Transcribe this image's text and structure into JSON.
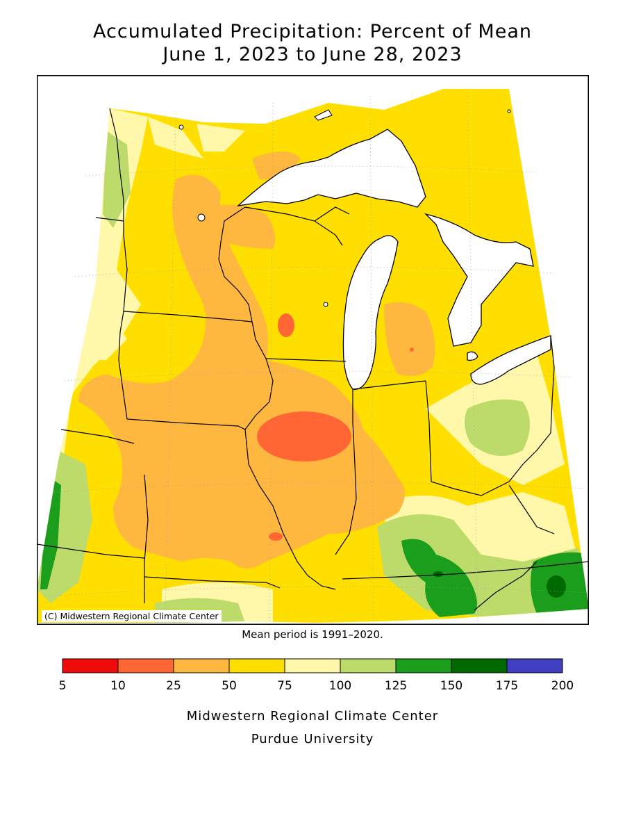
{
  "title": {
    "line1": "Accumulated Precipitation: Percent of Mean",
    "line2": "June 1, 2023 to June 28, 2023"
  },
  "map": {
    "credit": "(C) Midwestern Regional Climate Center",
    "region": "Midwest United States",
    "colors": {
      "water": "#ffffff",
      "lake_outline": "#000000",
      "state_border": "#000000"
    }
  },
  "note": "Mean period is 1991–2020.",
  "legend": {
    "ticks": [
      "5",
      "10",
      "25",
      "50",
      "75",
      "100",
      "125",
      "150",
      "175",
      "200"
    ],
    "bins": [
      {
        "range": "5-10",
        "color": "#f00a0a"
      },
      {
        "range": "10-25",
        "color": "#ff6633"
      },
      {
        "range": "25-50",
        "color": "#ffb83f"
      },
      {
        "range": "50-75",
        "color": "#ffdf00"
      },
      {
        "range": "75-100",
        "color": "#fff7a9"
      },
      {
        "range": "100-125",
        "color": "#bddb6b"
      },
      {
        "range": "125-150",
        "color": "#1b9e1b"
      },
      {
        "range": "150-175",
        "color": "#006a00"
      },
      {
        "range": "175-200",
        "color": "#3f3fbf"
      }
    ]
  },
  "footer": {
    "line1": "Midwestern Regional Climate Center",
    "line2": "Purdue University"
  }
}
